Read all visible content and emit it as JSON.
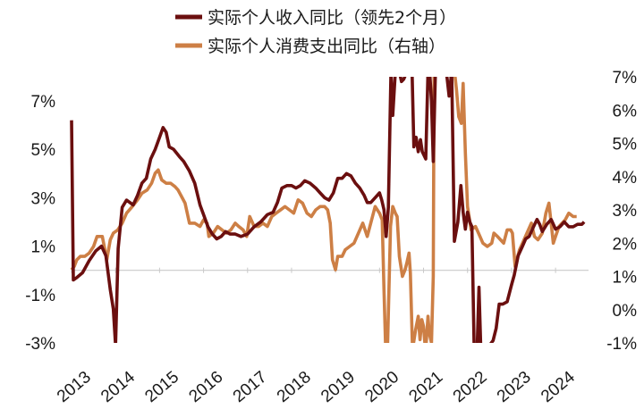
{
  "chart_data": {
    "type": "line",
    "legend": {
      "placement": "top-center",
      "entries": [
        "实际个人收入同比（领先2个月）",
        "实际个人消费支出同比（右轴）"
      ]
    },
    "colors": {
      "income": "#6B0F0F",
      "spending": "#CD7F45",
      "zero_line": "#c9c9c9"
    },
    "grid": false,
    "x_range": [
      2013.0,
      2024.75
    ],
    "x_ticks": [
      "2013",
      "2014",
      "2015",
      "2016",
      "2017",
      "2018",
      "2019",
      "2020",
      "2021",
      "2022",
      "2023",
      "2024"
    ],
    "left_axis": {
      "range": [
        -3,
        8
      ],
      "ticks": [
        {
          "v": 7,
          "label": "7%"
        },
        {
          "v": 5,
          "label": "5%"
        },
        {
          "v": 3,
          "label": "3%"
        },
        {
          "v": 1,
          "label": "1%"
        },
        {
          "v": -1,
          "label": "-1%"
        },
        {
          "v": -3,
          "label": "-3%"
        }
      ]
    },
    "right_axis": {
      "range": [
        -1,
        7
      ],
      "ticks": [
        {
          "v": 7,
          "label": "7%"
        },
        {
          "v": 6,
          "label": "6%"
        },
        {
          "v": 5,
          "label": "5%"
        },
        {
          "v": 4,
          "label": "4%"
        },
        {
          "v": 3,
          "label": "3%"
        },
        {
          "v": 2,
          "label": "2%"
        },
        {
          "v": 1,
          "label": "1%"
        },
        {
          "v": 0,
          "label": "0%"
        },
        {
          "v": -1,
          "label": "-1%"
        }
      ]
    },
    "series": [
      {
        "name": "实际个人收入同比（领先2个月）",
        "axis": "left",
        "points": [
          [
            2013.0,
            6.2
          ],
          [
            2013.04,
            -0.4
          ],
          [
            2013.12,
            -0.3
          ],
          [
            2013.25,
            -0.1
          ],
          [
            2013.4,
            0.4
          ],
          [
            2013.55,
            0.8
          ],
          [
            2013.68,
            1.0
          ],
          [
            2013.78,
            0.6
          ],
          [
            2013.88,
            -0.8
          ],
          [
            2013.95,
            -1.6
          ],
          [
            2014.0,
            -3.1
          ],
          [
            2014.06,
            0.9
          ],
          [
            2014.15,
            2.6
          ],
          [
            2014.25,
            2.9
          ],
          [
            2014.4,
            2.7
          ],
          [
            2014.5,
            3.1
          ],
          [
            2014.6,
            3.6
          ],
          [
            2014.7,
            3.8
          ],
          [
            2014.8,
            4.6
          ],
          [
            2014.9,
            5.0
          ],
          [
            2015.0,
            5.5
          ],
          [
            2015.08,
            5.9
          ],
          [
            2015.15,
            5.7
          ],
          [
            2015.22,
            5.1
          ],
          [
            2015.32,
            5.0
          ],
          [
            2015.45,
            4.7
          ],
          [
            2015.55,
            4.5
          ],
          [
            2015.68,
            4.1
          ],
          [
            2015.8,
            3.6
          ],
          [
            2015.92,
            2.7
          ],
          [
            2016.0,
            2.3
          ],
          [
            2016.1,
            1.8
          ],
          [
            2016.2,
            1.5
          ],
          [
            2016.3,
            1.3
          ],
          [
            2016.4,
            1.4
          ],
          [
            2016.5,
            1.6
          ],
          [
            2016.6,
            1.5
          ],
          [
            2016.72,
            1.5
          ],
          [
            2016.85,
            1.4
          ],
          [
            2017.0,
            1.5
          ],
          [
            2017.15,
            1.8
          ],
          [
            2017.3,
            2.0
          ],
          [
            2017.45,
            2.3
          ],
          [
            2017.58,
            2.4
          ],
          [
            2017.68,
            2.8
          ],
          [
            2017.78,
            3.4
          ],
          [
            2017.9,
            3.5
          ],
          [
            2018.0,
            3.5
          ],
          [
            2018.1,
            3.4
          ],
          [
            2018.2,
            3.5
          ],
          [
            2018.3,
            3.7
          ],
          [
            2018.42,
            3.6
          ],
          [
            2018.55,
            3.4
          ],
          [
            2018.65,
            3.2
          ],
          [
            2018.75,
            3.0
          ],
          [
            2018.85,
            2.9
          ],
          [
            2018.95,
            3.2
          ],
          [
            2019.05,
            3.8
          ],
          [
            2019.15,
            3.8
          ],
          [
            2019.25,
            4.0
          ],
          [
            2019.35,
            3.9
          ],
          [
            2019.45,
            3.6
          ],
          [
            2019.55,
            3.4
          ],
          [
            2019.65,
            3.1
          ],
          [
            2019.72,
            2.8
          ],
          [
            2019.8,
            2.8
          ],
          [
            2019.9,
            3.0
          ],
          [
            2020.0,
            3.2
          ],
          [
            2020.05,
            2.9
          ],
          [
            2020.1,
            2.5
          ],
          [
            2020.15,
            1.4
          ],
          [
            2020.2,
            2.6
          ],
          [
            2020.26,
            8.2
          ],
          [
            2020.3,
            6.4
          ],
          [
            2020.36,
            8.2
          ],
          [
            2020.45,
            8.2
          ],
          [
            2020.5,
            7.8
          ],
          [
            2020.55,
            7.9
          ],
          [
            2020.62,
            8.2
          ],
          [
            2020.68,
            8.2
          ],
          [
            2020.74,
            8.2
          ],
          [
            2020.78,
            5.1
          ],
          [
            2020.83,
            5.5
          ],
          [
            2020.88,
            4.9
          ],
          [
            2020.93,
            5.4
          ],
          [
            2020.97,
            4.9
          ],
          [
            2021.05,
            4.6
          ],
          [
            2021.1,
            8.2
          ],
          [
            2021.14,
            8.2
          ],
          [
            2021.18,
            7.0
          ],
          [
            2021.22,
            4.5
          ],
          [
            2021.27,
            8.2
          ],
          [
            2021.32,
            8.2
          ],
          [
            2021.4,
            8.2
          ],
          [
            2021.46,
            8.2
          ],
          [
            2021.52,
            8.2
          ],
          [
            2021.58,
            7.2
          ],
          [
            2021.64,
            8.2
          ],
          [
            2021.7,
            1.2
          ],
          [
            2021.78,
            2.0
          ],
          [
            2021.85,
            3.5
          ],
          [
            2021.9,
            2.4
          ],
          [
            2021.95,
            1.7
          ],
          [
            2022.0,
            2.4
          ],
          [
            2022.05,
            2.0
          ],
          [
            2022.1,
            1.8
          ],
          [
            2022.15,
            -3.2
          ],
          [
            2022.22,
            -3.2
          ],
          [
            2022.26,
            -0.7
          ],
          [
            2022.3,
            -3.2
          ],
          [
            2022.45,
            -3.2
          ],
          [
            2022.5,
            -3.1
          ],
          [
            2022.58,
            -2.9
          ],
          [
            2022.65,
            -2.4
          ],
          [
            2022.72,
            -1.4
          ],
          [
            2022.8,
            -1.4
          ],
          [
            2022.9,
            -1.3
          ],
          [
            2023.0,
            -0.6
          ],
          [
            2023.06,
            -0.2
          ],
          [
            2023.15,
            0.6
          ],
          [
            2023.25,
            1.0
          ],
          [
            2023.32,
            1.3
          ],
          [
            2023.4,
            1.4
          ],
          [
            2023.5,
            1.8
          ],
          [
            2023.58,
            2.1
          ],
          [
            2023.64,
            1.9
          ],
          [
            2023.7,
            1.6
          ],
          [
            2023.8,
            1.9
          ],
          [
            2023.9,
            2.1
          ],
          [
            2024.0,
            1.7
          ],
          [
            2024.1,
            1.8
          ],
          [
            2024.2,
            2.0
          ],
          [
            2024.3,
            1.8
          ],
          [
            2024.4,
            1.8
          ],
          [
            2024.5,
            1.9
          ],
          [
            2024.6,
            1.9
          ],
          [
            2024.65,
            2.0
          ]
        ]
      },
      {
        "name": "实际个人消费支出同比（右轴）",
        "axis": "right",
        "points": [
          [
            2013.0,
            1.2
          ],
          [
            2013.06,
            1.3
          ],
          [
            2013.12,
            1.5
          ],
          [
            2013.2,
            1.6
          ],
          [
            2013.3,
            1.6
          ],
          [
            2013.4,
            1.7
          ],
          [
            2013.5,
            1.9
          ],
          [
            2013.58,
            2.2
          ],
          [
            2013.7,
            2.2
          ],
          [
            2013.8,
            1.5
          ],
          [
            2013.88,
            2.1
          ],
          [
            2013.95,
            2.3
          ],
          [
            2014.05,
            2.4
          ],
          [
            2014.15,
            2.6
          ],
          [
            2014.25,
            2.9
          ],
          [
            2014.38,
            3.1
          ],
          [
            2014.5,
            3.3
          ],
          [
            2014.6,
            3.5
          ],
          [
            2014.72,
            3.6
          ],
          [
            2014.82,
            3.8
          ],
          [
            2014.9,
            4.1
          ],
          [
            2014.97,
            4.2
          ],
          [
            2015.05,
            3.9
          ],
          [
            2015.15,
            3.8
          ],
          [
            2015.25,
            3.8
          ],
          [
            2015.35,
            3.7
          ],
          [
            2015.42,
            3.6
          ],
          [
            2015.5,
            3.4
          ],
          [
            2015.58,
            3.2
          ],
          [
            2015.68,
            2.6
          ],
          [
            2015.8,
            2.6
          ],
          [
            2015.92,
            2.5
          ],
          [
            2016.0,
            2.7
          ],
          [
            2016.08,
            2.6
          ],
          [
            2016.12,
            2.2
          ],
          [
            2016.22,
            2.3
          ],
          [
            2016.32,
            2.5
          ],
          [
            2016.42,
            2.4
          ],
          [
            2016.52,
            2.3
          ],
          [
            2016.62,
            2.4
          ],
          [
            2016.72,
            2.6
          ],
          [
            2016.8,
            2.5
          ],
          [
            2016.9,
            2.4
          ],
          [
            2016.98,
            2.2
          ],
          [
            2017.05,
            2.8
          ],
          [
            2017.15,
            2.5
          ],
          [
            2017.25,
            2.5
          ],
          [
            2017.35,
            2.6
          ],
          [
            2017.45,
            2.5
          ],
          [
            2017.55,
            2.8
          ],
          [
            2017.65,
            2.9
          ],
          [
            2017.75,
            3.0
          ],
          [
            2017.85,
            3.1
          ],
          [
            2017.95,
            3.0
          ],
          [
            2018.05,
            2.9
          ],
          [
            2018.15,
            3.3
          ],
          [
            2018.25,
            3.2
          ],
          [
            2018.35,
            2.9
          ],
          [
            2018.45,
            2.8
          ],
          [
            2018.55,
            3.0
          ],
          [
            2018.65,
            3.1
          ],
          [
            2018.75,
            3.1
          ],
          [
            2018.82,
            3.0
          ],
          [
            2018.88,
            2.6
          ],
          [
            2018.93,
            1.5
          ],
          [
            2019.0,
            1.2
          ],
          [
            2019.05,
            1.6
          ],
          [
            2019.15,
            1.6
          ],
          [
            2019.22,
            1.8
          ],
          [
            2019.32,
            1.9
          ],
          [
            2019.42,
            2.0
          ],
          [
            2019.52,
            2.3
          ],
          [
            2019.62,
            2.6
          ],
          [
            2019.72,
            2.2
          ],
          [
            2019.8,
            2.6
          ],
          [
            2019.9,
            3.1
          ],
          [
            2020.0,
            2.9
          ],
          [
            2020.06,
            2.7
          ],
          [
            2020.1,
            0.6
          ],
          [
            2020.14,
            -1.2
          ],
          [
            2020.18,
            -1.2
          ],
          [
            2020.25,
            2.5
          ],
          [
            2020.3,
            3.1
          ],
          [
            2020.36,
            2.9
          ],
          [
            2020.4,
            2.8
          ],
          [
            2020.45,
            1.6
          ],
          [
            2020.52,
            1.0
          ],
          [
            2020.58,
            1.2
          ],
          [
            2020.62,
            1.4
          ],
          [
            2020.67,
            1.7
          ],
          [
            2020.7,
            1.1
          ],
          [
            2020.75,
            -1.2
          ],
          [
            2020.82,
            -0.6
          ],
          [
            2020.88,
            -0.2
          ],
          [
            2020.92,
            -0.9
          ],
          [
            2020.96,
            -0.3
          ],
          [
            2021.0,
            -0.5
          ],
          [
            2021.03,
            -1.0
          ],
          [
            2021.05,
            -1.2
          ],
          [
            2021.1,
            -0.2
          ],
          [
            2021.13,
            -0.7
          ],
          [
            2021.18,
            -1.0
          ],
          [
            2021.22,
            1.0
          ],
          [
            2021.24,
            7.2
          ],
          [
            2021.28,
            7.2
          ],
          [
            2021.36,
            7.2
          ],
          [
            2021.42,
            7.2
          ],
          [
            2021.48,
            7.2
          ],
          [
            2021.52,
            7.2
          ],
          [
            2021.55,
            7.2
          ],
          [
            2021.62,
            7.0
          ],
          [
            2021.7,
            7.2
          ],
          [
            2021.75,
            6.6
          ],
          [
            2021.8,
            5.8
          ],
          [
            2021.86,
            5.6
          ],
          [
            2021.9,
            6.8
          ],
          [
            2021.95,
            4.7
          ],
          [
            2022.0,
            3.1
          ],
          [
            2022.08,
            2.4
          ],
          [
            2022.18,
            2.5
          ],
          [
            2022.25,
            2.3
          ],
          [
            2022.35,
            2.0
          ],
          [
            2022.45,
            1.9
          ],
          [
            2022.55,
            2.0
          ],
          [
            2022.6,
            2.3
          ],
          [
            2022.68,
            2.2
          ],
          [
            2022.75,
            2.1
          ],
          [
            2022.82,
            2.0
          ],
          [
            2022.9,
            2.4
          ],
          [
            2022.98,
            2.4
          ],
          [
            2023.02,
            2.3
          ],
          [
            2023.08,
            1.3
          ],
          [
            2023.18,
            1.8
          ],
          [
            2023.25,
            2.0
          ],
          [
            2023.35,
            2.3
          ],
          [
            2023.45,
            2.6
          ],
          [
            2023.52,
            2.2
          ],
          [
            2023.6,
            2.1
          ],
          [
            2023.7,
            2.3
          ],
          [
            2023.78,
            2.9
          ],
          [
            2023.85,
            3.2
          ],
          [
            2023.9,
            2.6
          ],
          [
            2023.95,
            2.0
          ],
          [
            2024.0,
            2.2
          ],
          [
            2024.08,
            2.5
          ],
          [
            2024.15,
            2.6
          ],
          [
            2024.22,
            2.7
          ],
          [
            2024.3,
            2.9
          ],
          [
            2024.4,
            2.8
          ],
          [
            2024.48,
            2.8
          ]
        ]
      }
    ]
  }
}
